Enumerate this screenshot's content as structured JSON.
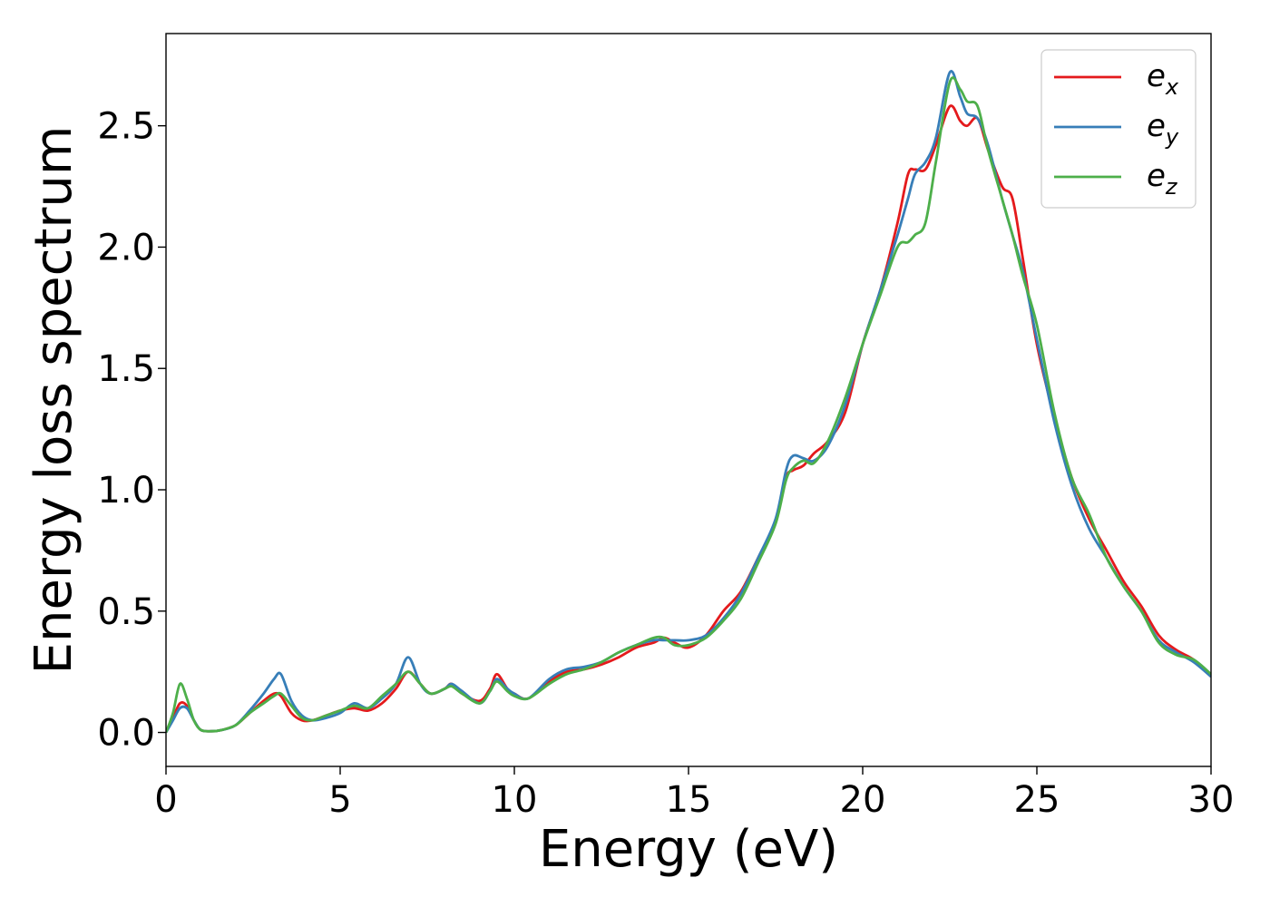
{
  "chart_data": {
    "type": "line",
    "xlabel": "Energy (eV)",
    "ylabel": "Energy loss spectrum",
    "xlim": [
      0,
      30
    ],
    "ylim": [
      -0.14,
      2.88
    ],
    "xticks": [
      0,
      5,
      10,
      15,
      20,
      25,
      30
    ],
    "yticks": [
      0.0,
      0.5,
      1.0,
      1.5,
      2.0,
      2.5
    ],
    "xtick_labels": [
      "0",
      "5",
      "10",
      "15",
      "20",
      "25",
      "30"
    ],
    "ytick_labels": [
      "0.0",
      "0.5",
      "1.0",
      "1.5",
      "2.0",
      "2.5"
    ],
    "grid": false,
    "legend_position": "top-right",
    "series": [
      {
        "name": "e_x",
        "label_base": "e",
        "label_sub": "x",
        "color": "#e41a1c",
        "x": [
          0,
          0.2,
          0.4,
          0.6,
          0.8,
          1.0,
          1.3,
          1.6,
          2.0,
          2.4,
          2.8,
          3.1,
          3.3,
          3.6,
          3.9,
          4.2,
          4.6,
          5.0,
          5.4,
          5.8,
          6.2,
          6.6,
          6.95,
          7.3,
          7.6,
          8.0,
          8.2,
          8.5,
          9.0,
          9.3,
          9.5,
          9.8,
          10.0,
          10.4,
          11.0,
          11.5,
          12.0,
          12.5,
          13.0,
          13.5,
          14.0,
          14.3,
          14.6,
          15.0,
          15.5,
          16.0,
          16.5,
          17.0,
          17.5,
          17.8,
          18.0,
          18.3,
          18.6,
          19.0,
          19.5,
          20.0,
          20.5,
          21.0,
          21.3,
          21.5,
          21.8,
          22.1,
          22.5,
          22.8,
          23.0,
          23.3,
          23.6,
          24.0,
          24.3,
          24.6,
          25.0,
          25.5,
          26.0,
          26.5,
          27.0,
          27.5,
          28.0,
          28.5,
          29.0,
          29.5,
          30.0
        ],
        "y": [
          0.0,
          0.06,
          0.12,
          0.11,
          0.05,
          0.01,
          0.005,
          0.01,
          0.03,
          0.08,
          0.13,
          0.16,
          0.15,
          0.08,
          0.05,
          0.05,
          0.07,
          0.09,
          0.1,
          0.09,
          0.12,
          0.18,
          0.25,
          0.2,
          0.16,
          0.18,
          0.2,
          0.16,
          0.13,
          0.18,
          0.24,
          0.18,
          0.16,
          0.14,
          0.21,
          0.25,
          0.26,
          0.28,
          0.31,
          0.35,
          0.37,
          0.39,
          0.37,
          0.35,
          0.4,
          0.5,
          0.58,
          0.72,
          0.87,
          1.05,
          1.08,
          1.1,
          1.15,
          1.2,
          1.32,
          1.6,
          1.82,
          2.1,
          2.3,
          2.32,
          2.32,
          2.42,
          2.58,
          2.52,
          2.5,
          2.53,
          2.4,
          2.25,
          2.2,
          1.95,
          1.6,
          1.3,
          1.05,
          0.88,
          0.75,
          0.62,
          0.52,
          0.4,
          0.34,
          0.3,
          0.23
        ]
      },
      {
        "name": "e_y",
        "label_base": "e",
        "label_sub": "y",
        "color": "#377eb8",
        "x": [
          0,
          0.2,
          0.4,
          0.6,
          0.8,
          1.0,
          1.3,
          1.6,
          2.0,
          2.4,
          2.8,
          3.1,
          3.3,
          3.6,
          3.9,
          4.2,
          4.6,
          5.0,
          5.4,
          5.8,
          6.2,
          6.6,
          6.95,
          7.3,
          7.6,
          8.0,
          8.2,
          8.5,
          9.0,
          9.3,
          9.5,
          9.8,
          10.0,
          10.4,
          11.0,
          11.5,
          12.0,
          12.5,
          13.0,
          13.5,
          14.0,
          14.3,
          14.6,
          15.0,
          15.5,
          16.0,
          16.5,
          17.0,
          17.5,
          17.8,
          18.0,
          18.3,
          18.6,
          19.0,
          19.5,
          20.0,
          20.5,
          21.0,
          21.3,
          21.5,
          21.8,
          22.1,
          22.5,
          22.8,
          23.0,
          23.3,
          23.6,
          24.0,
          24.3,
          24.6,
          25.0,
          25.5,
          26.0,
          26.5,
          27.0,
          27.5,
          28.0,
          28.5,
          29.0,
          29.5,
          30.0
        ],
        "y": [
          0.0,
          0.05,
          0.1,
          0.1,
          0.05,
          0.01,
          0.005,
          0.01,
          0.03,
          0.09,
          0.16,
          0.22,
          0.24,
          0.13,
          0.07,
          0.05,
          0.06,
          0.08,
          0.12,
          0.1,
          0.14,
          0.2,
          0.31,
          0.2,
          0.16,
          0.18,
          0.2,
          0.17,
          0.12,
          0.17,
          0.22,
          0.18,
          0.16,
          0.14,
          0.22,
          0.26,
          0.27,
          0.29,
          0.33,
          0.36,
          0.38,
          0.38,
          0.38,
          0.38,
          0.4,
          0.47,
          0.57,
          0.72,
          0.88,
          1.08,
          1.14,
          1.13,
          1.12,
          1.18,
          1.35,
          1.6,
          1.82,
          2.05,
          2.2,
          2.3,
          2.35,
          2.45,
          2.72,
          2.62,
          2.55,
          2.53,
          2.42,
          2.2,
          2.05,
          1.9,
          1.62,
          1.28,
          1.02,
          0.84,
          0.72,
          0.6,
          0.5,
          0.38,
          0.33,
          0.29,
          0.23
        ]
      },
      {
        "name": "e_z",
        "label_base": "e",
        "label_sub": "z",
        "color": "#4daf4a",
        "x": [
          0,
          0.2,
          0.4,
          0.6,
          0.8,
          1.0,
          1.3,
          1.6,
          2.0,
          2.4,
          2.8,
          3.1,
          3.3,
          3.6,
          3.9,
          4.2,
          4.6,
          5.0,
          5.4,
          5.8,
          6.2,
          6.6,
          6.95,
          7.3,
          7.6,
          8.0,
          8.2,
          8.5,
          9.0,
          9.3,
          9.5,
          9.8,
          10.0,
          10.4,
          11.0,
          11.5,
          12.0,
          12.5,
          13.0,
          13.5,
          14.0,
          14.3,
          14.6,
          15.0,
          15.5,
          16.0,
          16.5,
          17.0,
          17.5,
          17.8,
          18.0,
          18.3,
          18.6,
          19.0,
          19.5,
          20.0,
          20.5,
          21.0,
          21.3,
          21.5,
          21.8,
          22.1,
          22.5,
          22.8,
          23.0,
          23.3,
          23.6,
          24.0,
          24.3,
          24.6,
          25.0,
          25.5,
          26.0,
          26.5,
          27.0,
          27.5,
          28.0,
          28.5,
          29.0,
          29.5,
          30.0
        ],
        "y": [
          0.0,
          0.08,
          0.2,
          0.14,
          0.05,
          0.01,
          0.005,
          0.01,
          0.03,
          0.08,
          0.12,
          0.15,
          0.16,
          0.11,
          0.06,
          0.05,
          0.07,
          0.09,
          0.11,
          0.1,
          0.15,
          0.2,
          0.25,
          0.2,
          0.16,
          0.18,
          0.19,
          0.16,
          0.12,
          0.17,
          0.21,
          0.17,
          0.15,
          0.14,
          0.2,
          0.24,
          0.26,
          0.29,
          0.33,
          0.36,
          0.39,
          0.39,
          0.36,
          0.36,
          0.39,
          0.46,
          0.55,
          0.7,
          0.86,
          1.04,
          1.09,
          1.12,
          1.11,
          1.2,
          1.38,
          1.6,
          1.8,
          2.0,
          2.02,
          2.05,
          2.1,
          2.35,
          2.68,
          2.65,
          2.6,
          2.58,
          2.4,
          2.2,
          2.05,
          1.88,
          1.68,
          1.32,
          1.05,
          0.9,
          0.72,
          0.6,
          0.5,
          0.37,
          0.32,
          0.3,
          0.24
        ]
      }
    ]
  }
}
